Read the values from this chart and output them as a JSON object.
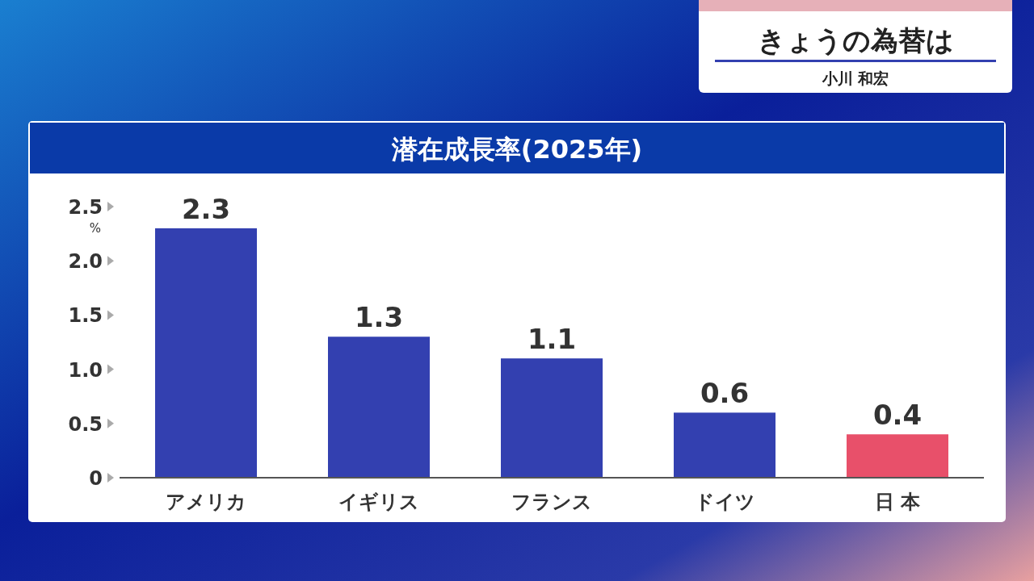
{
  "chart_data": {
    "type": "bar",
    "title": "潜在成長率(2025年)",
    "ylabel": "%",
    "annotations": [
      "きょうの為替は",
      "小川 和宏"
    ],
    "categories": [
      "アメリカ",
      "イギリス",
      "フランス",
      "ドイツ",
      "日 本"
    ],
    "values": [
      2.3,
      1.3,
      1.1,
      0.6,
      0.4
    ],
    "colors": [
      "#3340b0",
      "#3340b0",
      "#3340b0",
      "#3340b0",
      "#e8506a"
    ],
    "ylim": [
      0,
      2.5
    ],
    "yticks": [
      0,
      0.5,
      {
        "value": 1,
        "label": "1.0"
      },
      1.5,
      {
        "value": 2,
        "label": "2.0"
      },
      2.5
    ],
    "data_labels": true,
    "grid": false
  }
}
